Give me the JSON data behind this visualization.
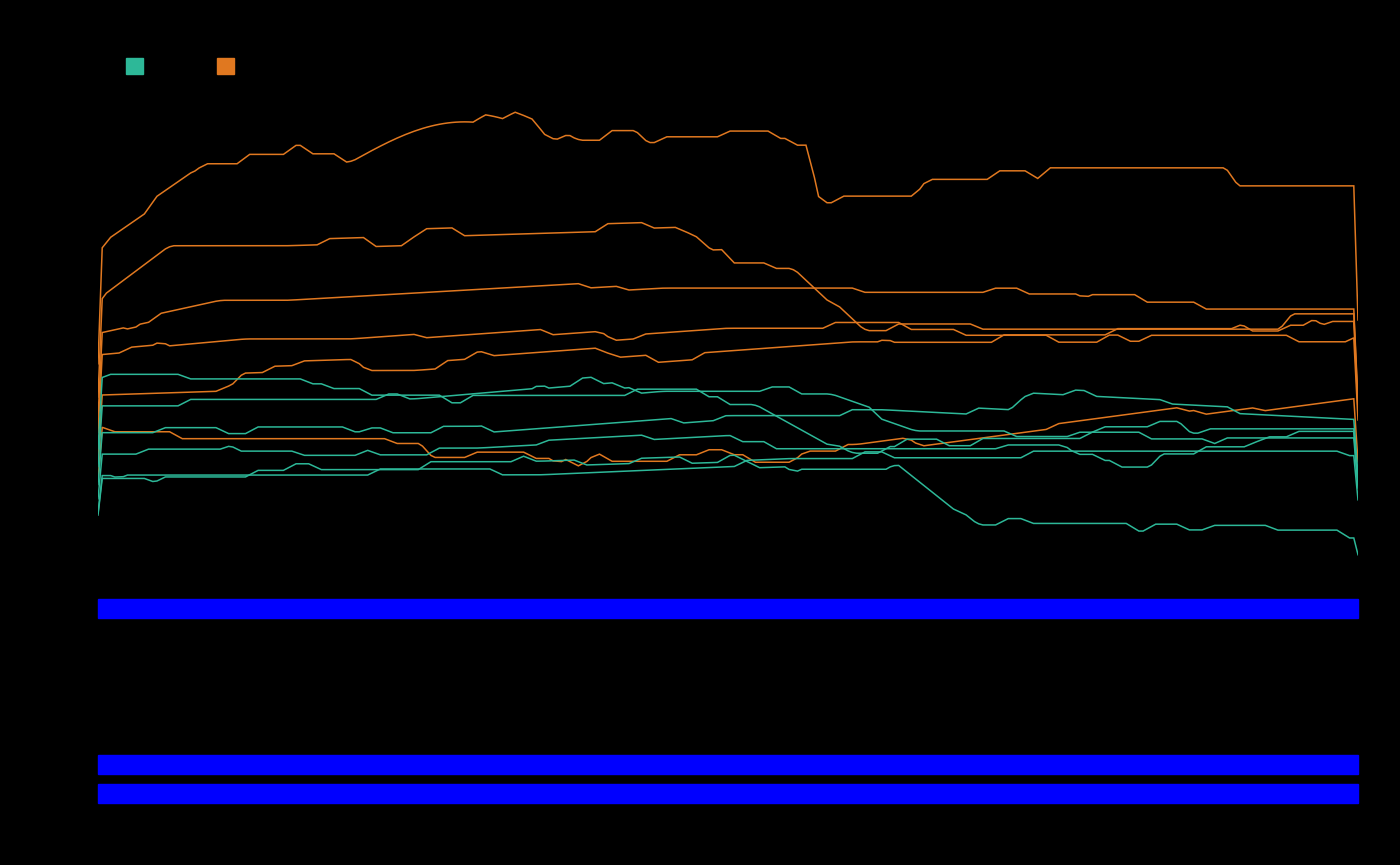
{
  "background_color": "#000000",
  "line_color_orange": "#E07820",
  "line_color_teal": "#2DB898",
  "blue_bar_color": "#0000FF",
  "n_points": 300,
  "figsize": [
    14.0,
    8.65
  ],
  "dpi": 100,
  "orange_color": "#E07820",
  "teal_color": "#2DB898"
}
